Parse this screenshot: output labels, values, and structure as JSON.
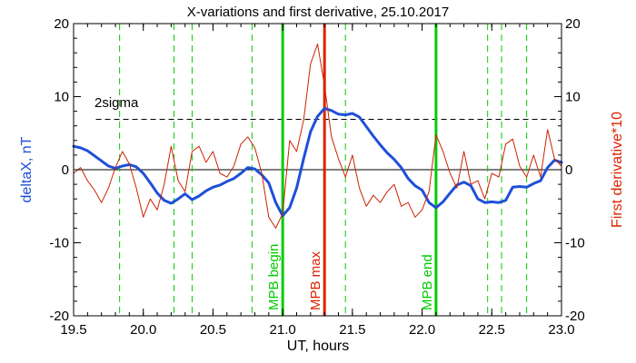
{
  "chart_data": {
    "type": "line",
    "title": "X-variations and first derivative, 25.10.2017",
    "xlabel": "UT, hours",
    "ylabel_left": "deltaX, nT",
    "ylabel_right": "First derivative*10",
    "xlim": [
      19.5,
      23.0
    ],
    "ylim": [
      -20,
      20
    ],
    "xticks": [
      "19.5",
      "20.0",
      "20.5",
      "21.0",
      "21.5",
      "22.0",
      "22.5",
      "23.0"
    ],
    "yticks": [
      "20",
      "10",
      "0",
      "-10",
      "-20"
    ],
    "colors": {
      "deltaX": "#1f4fd8",
      "derivative": "#cc2200",
      "green_markers": "#00cc00",
      "red_marker": "#dd2200",
      "axes": "#000000"
    },
    "threshold": {
      "label": "2sigma",
      "y": 6.9
    },
    "zero_line": 0,
    "dashed_vlines": [
      19.83,
      20.22,
      20.35,
      20.78,
      21.45,
      22.47,
      22.57,
      22.75
    ],
    "markers": [
      {
        "x": 21.0,
        "label": "MPB begin",
        "color": "green"
      },
      {
        "x": 21.3,
        "label": "MPB max",
        "color": "red"
      },
      {
        "x": 22.1,
        "label": "MPB end",
        "color": "green"
      }
    ],
    "series": [
      {
        "name": "deltaX",
        "x": [
          19.5,
          19.55,
          19.6,
          19.65,
          19.7,
          19.75,
          19.8,
          19.85,
          19.9,
          19.95,
          20.0,
          20.05,
          20.1,
          20.15,
          20.2,
          20.25,
          20.3,
          20.35,
          20.4,
          20.45,
          20.5,
          20.55,
          20.6,
          20.65,
          20.7,
          20.75,
          20.8,
          20.85,
          20.9,
          20.95,
          21.0,
          21.05,
          21.1,
          21.15,
          21.2,
          21.25,
          21.3,
          21.35,
          21.4,
          21.45,
          21.5,
          21.55,
          21.6,
          21.65,
          21.7,
          21.75,
          21.8,
          21.85,
          21.9,
          21.95,
          22.0,
          22.05,
          22.1,
          22.15,
          22.2,
          22.25,
          22.3,
          22.35,
          22.4,
          22.45,
          22.5,
          22.55,
          22.6,
          22.65,
          22.7,
          22.75,
          22.8,
          22.85,
          22.9,
          22.95,
          23.0
        ],
        "y": [
          3.2,
          3.0,
          2.6,
          1.9,
          1.2,
          0.5,
          0.2,
          0.5,
          0.7,
          0.4,
          -0.5,
          -1.8,
          -3.2,
          -4.2,
          -4.6,
          -4.0,
          -3.3,
          -4.1,
          -3.6,
          -2.9,
          -2.4,
          -2.1,
          -1.6,
          -1.2,
          -0.5,
          0.3,
          0.1,
          -0.7,
          -1.8,
          -4.5,
          -6.3,
          -5.2,
          -2.5,
          1.5,
          5.2,
          7.3,
          8.4,
          8.1,
          7.6,
          7.5,
          7.7,
          7.2,
          5.9,
          4.6,
          3.4,
          2.3,
          1.4,
          0.3,
          -1.2,
          -2.2,
          -2.8,
          -4.5,
          -5.2,
          -4.4,
          -3.2,
          -2.1,
          -1.7,
          -2.2,
          -4.0,
          -4.5,
          -4.4,
          -4.5,
          -4.2,
          -2.4,
          -2.3,
          -2.4,
          -1.9,
          -1.5,
          0.3,
          1.3,
          1.0
        ]
      },
      {
        "name": "First derivative*10",
        "x": [
          19.5,
          19.55,
          19.6,
          19.65,
          19.7,
          19.75,
          19.8,
          19.85,
          19.9,
          19.95,
          20.0,
          20.05,
          20.1,
          20.15,
          20.2,
          20.25,
          20.3,
          20.35,
          20.4,
          20.45,
          20.5,
          20.55,
          20.6,
          20.65,
          20.7,
          20.75,
          20.8,
          20.85,
          20.9,
          20.95,
          21.0,
          21.05,
          21.1,
          21.15,
          21.2,
          21.25,
          21.3,
          21.35,
          21.4,
          21.45,
          21.5,
          21.55,
          21.6,
          21.65,
          21.7,
          21.75,
          21.8,
          21.85,
          21.9,
          21.95,
          22.0,
          22.05,
          22.1,
          22.15,
          22.2,
          22.25,
          22.3,
          22.35,
          22.4,
          22.45,
          22.5,
          22.55,
          22.6,
          22.65,
          22.7,
          22.75,
          22.8,
          22.85,
          22.9,
          22.95,
          23.0
        ],
        "y": [
          -0.5,
          0.3,
          -1.5,
          -2.8,
          -4.5,
          -2.5,
          0.3,
          2.5,
          0.8,
          -2.5,
          -6.5,
          -4.0,
          -5.5,
          -2.0,
          3.2,
          -1.5,
          -3.0,
          2.5,
          3.2,
          1.0,
          2.5,
          -0.5,
          -1.0,
          0.5,
          3.5,
          4.5,
          3.0,
          -0.5,
          -6.5,
          -8.0,
          -6.0,
          4.0,
          2.5,
          6.8,
          14.5,
          17.2,
          11.5,
          4.5,
          1.5,
          -1.0,
          2.0,
          -2.5,
          -5.0,
          -3.5,
          -4.5,
          -3.0,
          -2.0,
          -5.0,
          -4.5,
          -6.5,
          -5.5,
          -3.0,
          4.8,
          2.5,
          -0.5,
          -2.5,
          2.5,
          -2.0,
          -1.5,
          -4.0,
          -0.5,
          -1.0,
          3.5,
          4.2,
          0.5,
          -1.0,
          2.0,
          -1.0,
          5.5,
          1.5,
          0.5
        ]
      }
    ]
  }
}
